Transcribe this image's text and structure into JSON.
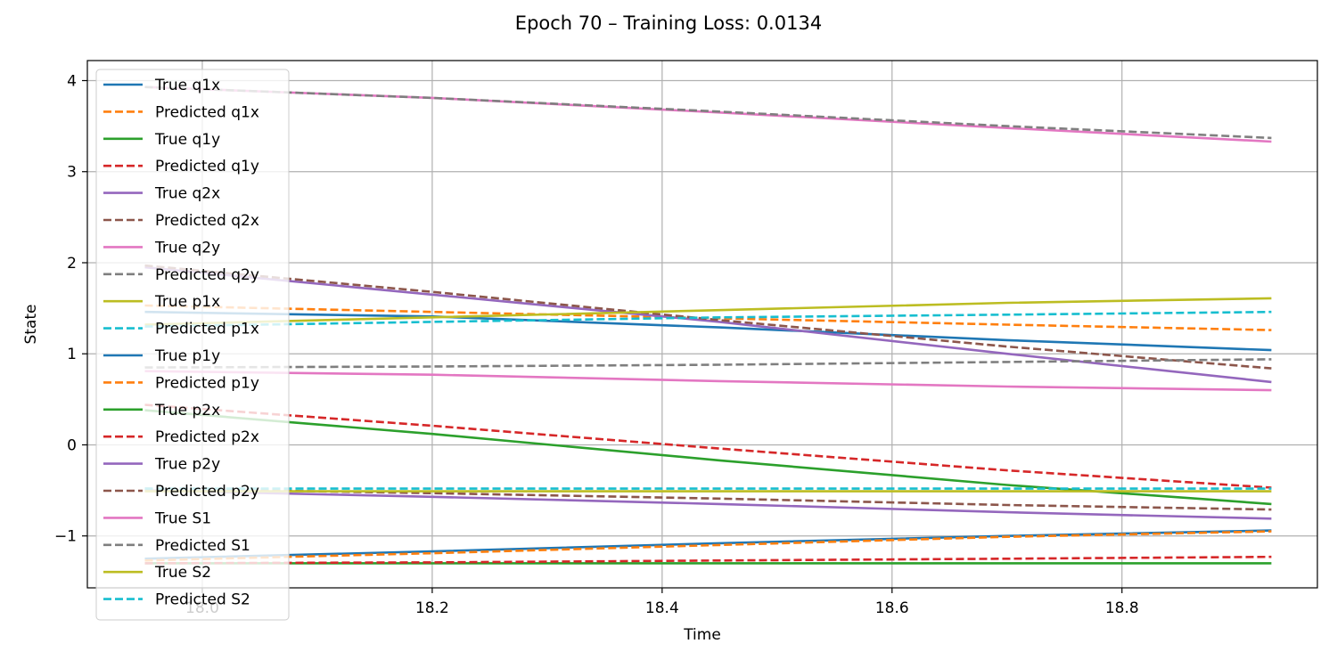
{
  "chart_data": {
    "type": "line",
    "title": "Epoch 70 – Training Loss: 0.0134",
    "xlabel": "Time",
    "ylabel": "State",
    "xlim": [
      17.9,
      18.97
    ],
    "ylim": [
      -1.57,
      4.22
    ],
    "x_ticks": [
      18.0,
      18.2,
      18.4,
      18.6,
      18.8
    ],
    "x_tick_labels": [
      "18.0",
      "18.2",
      "18.4",
      "18.6",
      "18.8"
    ],
    "y_ticks": [
      -1,
      0,
      1,
      2,
      3,
      4
    ],
    "y_tick_labels": [
      "−1",
      "0",
      "1",
      "2",
      "3",
      "4"
    ],
    "grid": true,
    "legend_position": "upper-left",
    "x": [
      17.95,
      18.2,
      18.45,
      18.7,
      18.93
    ],
    "series": [
      {
        "name": "True q1x",
        "color": "#1f77b4",
        "dash": "solid",
        "values": [
          1.46,
          1.41,
          1.29,
          1.15,
          1.04
        ]
      },
      {
        "name": "Predicted q1x",
        "color": "#ff7f0e",
        "dash": "dashed",
        "values": [
          1.53,
          1.46,
          1.39,
          1.32,
          1.26
        ]
      },
      {
        "name": "True q1y",
        "color": "#2ca02c",
        "dash": "solid",
        "values": [
          -1.3,
          -1.3,
          -1.3,
          -1.3,
          -1.3
        ]
      },
      {
        "name": "Predicted q1y",
        "color": "#d62728",
        "dash": "dashed",
        "values": [
          -1.3,
          -1.29,
          -1.27,
          -1.25,
          -1.23
        ]
      },
      {
        "name": "True q2x",
        "color": "#9467bd",
        "dash": "solid",
        "values": [
          1.95,
          1.65,
          1.35,
          1.0,
          0.69
        ]
      },
      {
        "name": "Predicted q2x",
        "color": "#8c564b",
        "dash": "dashed",
        "values": [
          1.97,
          1.68,
          1.37,
          1.08,
          0.84
        ]
      },
      {
        "name": "True q2y",
        "color": "#e377c2",
        "dash": "solid",
        "values": [
          0.81,
          0.77,
          0.7,
          0.64,
          0.6
        ]
      },
      {
        "name": "Predicted q2y",
        "color": "#7f7f7f",
        "dash": "dashed",
        "values": [
          0.85,
          0.86,
          0.88,
          0.91,
          0.94
        ]
      },
      {
        "name": "True p1x",
        "color": "#bcbd22",
        "dash": "solid",
        "values": [
          1.32,
          1.4,
          1.48,
          1.56,
          1.61
        ]
      },
      {
        "name": "Predicted p1x",
        "color": "#17becf",
        "dash": "dashed",
        "values": [
          1.3,
          1.35,
          1.4,
          1.43,
          1.46
        ]
      },
      {
        "name": "True p1y",
        "color": "#1f77b4",
        "dash": "solid",
        "values": [
          -1.25,
          -1.17,
          -1.08,
          -1.0,
          -0.94
        ]
      },
      {
        "name": "Predicted p1y",
        "color": "#ff7f0e",
        "dash": "dashed",
        "values": [
          -1.27,
          -1.19,
          -1.1,
          -1.01,
          -0.95
        ]
      },
      {
        "name": "True p2x",
        "color": "#2ca02c",
        "dash": "solid",
        "values": [
          0.38,
          0.12,
          -0.17,
          -0.44,
          -0.65
        ]
      },
      {
        "name": "Predicted p2x",
        "color": "#d62728",
        "dash": "dashed",
        "values": [
          0.44,
          0.21,
          -0.04,
          -0.28,
          -0.47
        ]
      },
      {
        "name": "True p2y",
        "color": "#9467bd",
        "dash": "solid",
        "values": [
          -0.5,
          -0.57,
          -0.65,
          -0.74,
          -0.81
        ]
      },
      {
        "name": "Predicted p2y",
        "color": "#8c564b",
        "dash": "dashed",
        "values": [
          -0.48,
          -0.53,
          -0.59,
          -0.66,
          -0.71
        ]
      },
      {
        "name": "True S1",
        "color": "#e377c2",
        "dash": "solid",
        "values": [
          3.93,
          3.81,
          3.65,
          3.48,
          3.33
        ]
      },
      {
        "name": "Predicted S1",
        "color": "#7f7f7f",
        "dash": "dashed",
        "values": [
          3.93,
          3.81,
          3.66,
          3.5,
          3.37
        ]
      },
      {
        "name": "True S2",
        "color": "#bcbd22",
        "dash": "solid",
        "values": [
          -0.51,
          -0.51,
          -0.51,
          -0.51,
          -0.51
        ]
      },
      {
        "name": "Predicted S2",
        "color": "#17becf",
        "dash": "dashed",
        "values": [
          -0.48,
          -0.48,
          -0.48,
          -0.48,
          -0.48
        ]
      }
    ]
  }
}
